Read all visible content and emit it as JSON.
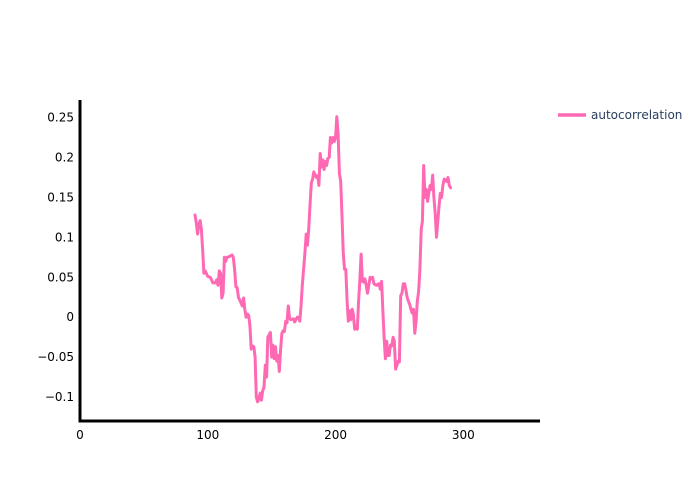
{
  "chart_data": {
    "type": "line",
    "xlim": [
      0,
      360
    ],
    "ylim": [
      -0.13,
      0.272
    ],
    "x_ticks": [
      0,
      100,
      200,
      300
    ],
    "y_ticks": [
      -0.1,
      -0.05,
      0,
      0.05,
      0.1,
      0.15,
      0.2,
      0.25
    ],
    "x_tick_labels": [
      "0",
      "100",
      "200",
      "300"
    ],
    "y_tick_labels": [
      "−0.1",
      "−0.05",
      "0",
      "0.05",
      "0.1",
      "0.15",
      "0.2",
      "0.25"
    ],
    "legend_position": "top-right",
    "grid": false,
    "series": [
      {
        "name": "autocorrelation",
        "color": "#ff69b4",
        "points": [
          [
            90,
            0.128
          ],
          [
            91,
            0.118
          ],
          [
            92,
            0.104
          ],
          [
            93,
            0.115
          ],
          [
            94,
            0.121
          ],
          [
            95,
            0.11
          ],
          [
            96,
            0.083
          ],
          [
            97,
            0.055
          ],
          [
            98,
            0.058
          ],
          [
            100,
            0.051
          ],
          [
            102,
            0.05
          ],
          [
            104,
            0.043
          ],
          [
            106,
            0.043
          ],
          [
            107,
            0.047
          ],
          [
            108,
            0.04
          ],
          [
            109,
            0.058
          ],
          [
            110,
            0.055
          ],
          [
            111,
            0.024
          ],
          [
            112,
            0.03
          ],
          [
            113,
            0.075
          ],
          [
            114,
            0.07
          ],
          [
            115,
            0.075
          ],
          [
            117,
            0.076
          ],
          [
            119,
            0.078
          ],
          [
            120,
            0.075
          ],
          [
            121,
            0.06
          ],
          [
            122,
            0.038
          ],
          [
            123,
            0.037
          ],
          [
            124,
            0.025
          ],
          [
            126,
            0.018
          ],
          [
            127,
            0.014
          ],
          [
            128,
            0.024
          ],
          [
            129,
            0.01
          ],
          [
            130,
            0.0
          ],
          [
            131,
            0.004
          ],
          [
            132,
            0.002
          ],
          [
            133,
            -0.01
          ],
          [
            134,
            -0.04
          ],
          [
            135,
            -0.036
          ],
          [
            136,
            -0.037
          ],
          [
            137,
            -0.05
          ],
          [
            138,
            -0.1
          ],
          [
            139,
            -0.106
          ],
          [
            140,
            -0.102
          ],
          [
            141,
            -0.095
          ],
          [
            142,
            -0.104
          ],
          [
            143,
            -0.092
          ],
          [
            144,
            -0.088
          ],
          [
            145,
            -0.06
          ],
          [
            146,
            -0.075
          ],
          [
            147,
            -0.025
          ],
          [
            148,
            -0.022
          ],
          [
            149,
            -0.019
          ],
          [
            150,
            -0.05
          ],
          [
            151,
            -0.035
          ],
          [
            152,
            -0.052
          ],
          [
            153,
            -0.037
          ],
          [
            154,
            -0.055
          ],
          [
            155,
            -0.048
          ],
          [
            156,
            -0.068
          ],
          [
            157,
            -0.04
          ],
          [
            158,
            -0.02
          ],
          [
            159,
            -0.017
          ],
          [
            160,
            -0.018
          ],
          [
            161,
            -0.005
          ],
          [
            162,
            -0.007
          ],
          [
            163,
            0.014
          ],
          [
            164,
            -0.002
          ],
          [
            165,
            -0.003
          ],
          [
            167,
            -0.002
          ],
          [
            168,
            -0.006
          ],
          [
            169,
            -0.003
          ],
          [
            170,
            0.0
          ],
          [
            171,
            0.0
          ],
          [
            172,
            -0.005
          ],
          [
            173,
            0.015
          ],
          [
            174,
            0.04
          ],
          [
            175,
            0.06
          ],
          [
            176,
            0.08
          ],
          [
            177,
            0.104
          ],
          [
            178,
            0.09
          ],
          [
            179,
            0.11
          ],
          [
            180,
            0.14
          ],
          [
            181,
            0.168
          ],
          [
            182,
            0.173
          ],
          [
            183,
            0.182
          ],
          [
            185,
            0.175
          ],
          [
            186,
            0.177
          ],
          [
            187,
            0.165
          ],
          [
            188,
            0.205
          ],
          [
            189,
            0.188
          ],
          [
            190,
            0.197
          ],
          [
            191,
            0.185
          ],
          [
            192,
            0.195
          ],
          [
            193,
            0.19
          ],
          [
            194,
            0.199
          ],
          [
            195,
            0.2
          ],
          [
            196,
            0.225
          ],
          [
            197,
            0.218
          ],
          [
            198,
            0.225
          ],
          [
            199,
            0.22
          ],
          [
            200,
            0.225
          ],
          [
            201,
            0.251
          ],
          [
            202,
            0.23
          ],
          [
            203,
            0.18
          ],
          [
            204,
            0.17
          ],
          [
            205,
            0.13
          ],
          [
            206,
            0.082
          ],
          [
            207,
            0.06
          ],
          [
            208,
            0.06
          ],
          [
            209,
            0.02
          ],
          [
            210,
            -0.005
          ],
          [
            211,
            0.008
          ],
          [
            212,
            -0.003
          ],
          [
            213,
            0.01
          ],
          [
            214,
            0.003
          ],
          [
            215,
            -0.015
          ],
          [
            216,
            -0.012
          ],
          [
            217,
            -0.015
          ],
          [
            218,
            0.02
          ],
          [
            219,
            0.045
          ],
          [
            220,
            0.079
          ],
          [
            221,
            0.045
          ],
          [
            222,
            0.044
          ],
          [
            223,
            0.048
          ],
          [
            224,
            0.04
          ],
          [
            225,
            0.03
          ],
          [
            226,
            0.04
          ],
          [
            227,
            0.05
          ],
          [
            228,
            0.048
          ],
          [
            229,
            0.05
          ],
          [
            230,
            0.042
          ],
          [
            232,
            0.04
          ],
          [
            234,
            0.042
          ],
          [
            235,
            0.035
          ],
          [
            236,
            0.045
          ],
          [
            237,
            0.01
          ],
          [
            238,
            -0.025
          ],
          [
            239,
            -0.052
          ],
          [
            240,
            -0.03
          ],
          [
            241,
            -0.048
          ],
          [
            242,
            -0.048
          ],
          [
            243,
            -0.035
          ],
          [
            244,
            -0.036
          ],
          [
            245,
            -0.025
          ],
          [
            246,
            -0.03
          ],
          [
            247,
            -0.065
          ],
          [
            248,
            -0.06
          ],
          [
            249,
            -0.055
          ],
          [
            250,
            -0.056
          ],
          [
            251,
            0.027
          ],
          [
            252,
            0.03
          ],
          [
            253,
            0.042
          ],
          [
            254,
            0.042
          ],
          [
            255,
            0.035
          ],
          [
            256,
            0.025
          ],
          [
            257,
            0.02
          ],
          [
            258,
            0.016
          ],
          [
            259,
            0.01
          ],
          [
            260,
            0.005
          ],
          [
            261,
            0.01
          ],
          [
            262,
            -0.02
          ],
          [
            263,
            -0.005
          ],
          [
            264,
            0.02
          ],
          [
            265,
            0.032
          ],
          [
            266,
            0.06
          ],
          [
            267,
            0.11
          ],
          [
            268,
            0.12
          ],
          [
            269,
            0.19
          ],
          [
            270,
            0.15
          ],
          [
            271,
            0.16
          ],
          [
            272,
            0.145
          ],
          [
            273,
            0.155
          ],
          [
            274,
            0.165
          ],
          [
            275,
            0.16
          ],
          [
            276,
            0.178
          ],
          [
            277,
            0.15
          ],
          [
            278,
            0.13
          ],
          [
            279,
            0.1
          ],
          [
            280,
            0.12
          ],
          [
            281,
            0.14
          ],
          [
            282,
            0.155
          ],
          [
            283,
            0.15
          ],
          [
            284,
            0.165
          ],
          [
            285,
            0.173
          ],
          [
            286,
            0.172
          ],
          [
            287,
            0.17
          ],
          [
            288,
            0.175
          ],
          [
            289,
            0.165
          ],
          [
            290,
            0.162
          ]
        ]
      }
    ]
  }
}
